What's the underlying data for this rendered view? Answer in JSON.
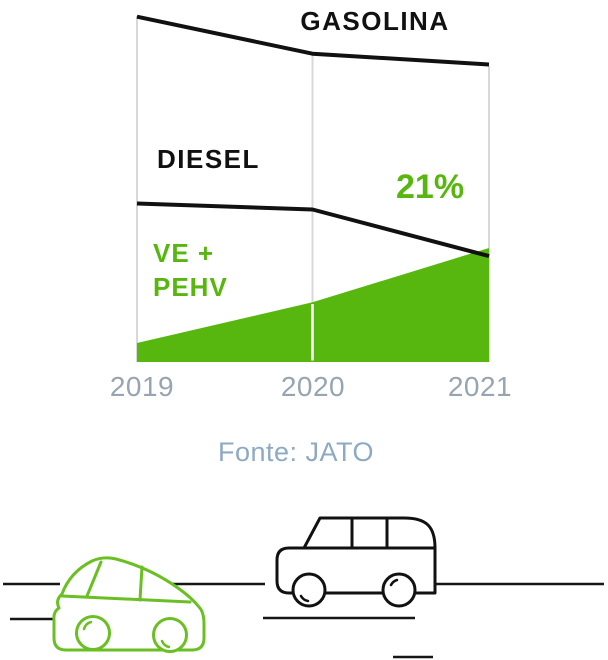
{
  "labels": {
    "gasolina": "GASOLINA",
    "diesel": "DIESEL",
    "ve_line1": "VE +",
    "ve_line2": "PEHV",
    "highlight_pct": "21%"
  },
  "x_axis": {
    "years": [
      "2019",
      "2020",
      "2021"
    ]
  },
  "source": "Fonte: JATO",
  "colors": {
    "chart_green": "#58b70f",
    "car_green": "#6abf23",
    "line_black": "#111111",
    "road_black": "#161616",
    "grid_gray": "#d8d8d8",
    "year_gray": "#97a4b1",
    "source_blue_gray": "#8da9c4"
  },
  "icons": {
    "electric_car": "green-electric-car-icon",
    "combustion_van": "black-combustion-van-icon"
  },
  "chart_data": {
    "type": "area",
    "title": "",
    "xlabel": "",
    "ylabel": "",
    "x": [
      "2019",
      "2020",
      "2021"
    ],
    "grid": "vertical-only",
    "legend_position": "inline-labels",
    "unit": "percent (estimated from 21% annotation)",
    "series": [
      {
        "name": "GASOLINA",
        "style": "line",
        "values_pct": [
          63.6,
          56.8,
          54.8
        ]
      },
      {
        "name": "DIESEL",
        "style": "line",
        "values_pct": [
          29.2,
          28.1,
          19.5
        ]
      },
      {
        "name": "VE + PEHV",
        "style": "filled-area",
        "values_pct": [
          3.5,
          11,
          21
        ]
      }
    ],
    "annotations": [
      {
        "text": "21%",
        "series": "VE + PEHV",
        "x": "2021"
      }
    ],
    "source": "Fonte: JATO"
  }
}
